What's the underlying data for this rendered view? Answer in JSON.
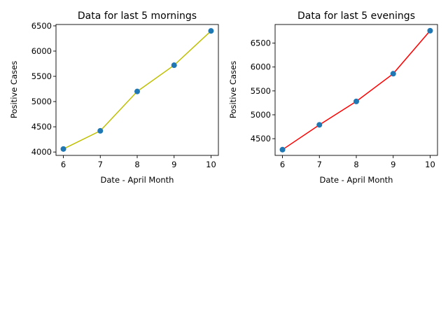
{
  "chart_data": [
    {
      "type": "line",
      "title": "Data for last 5 mornings",
      "xlabel": "Date - April Month",
      "ylabel": "Positive Cases",
      "x": [
        6,
        7,
        8,
        9,
        10
      ],
      "values": [
        4060,
        4420,
        5200,
        5720,
        6400
      ],
      "xlim": [
        5.8,
        10.2
      ],
      "ylim": [
        3933,
        6527
      ],
      "xticks": [
        6,
        7,
        8,
        9,
        10
      ],
      "yticks": [
        4000,
        4500,
        5000,
        5500,
        6000,
        6500
      ],
      "line_color": "#bfbf00",
      "marker_color": "#1f77b4",
      "grid": false
    },
    {
      "type": "line",
      "title": "Data for last 5 evenings",
      "xlabel": "Date - April Month",
      "ylabel": "Positive Cases",
      "x": [
        6,
        7,
        8,
        9,
        10
      ],
      "values": [
        4270,
        4790,
        5280,
        5860,
        6760
      ],
      "xlim": [
        5.8,
        10.2
      ],
      "ylim": [
        4150,
        6890
      ],
      "xticks": [
        6,
        7,
        8,
        9,
        10
      ],
      "yticks": [
        4500,
        5000,
        5500,
        6000,
        6500
      ],
      "line_color": "#ff0000",
      "marker_color": "#1f77b4",
      "grid": false
    }
  ]
}
